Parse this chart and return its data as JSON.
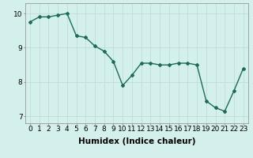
{
  "x": [
    0,
    1,
    2,
    3,
    4,
    5,
    6,
    7,
    8,
    9,
    10,
    11,
    12,
    13,
    14,
    15,
    16,
    17,
    18,
    19,
    20,
    21,
    22,
    23
  ],
  "y": [
    9.75,
    9.9,
    9.9,
    9.95,
    10.0,
    9.35,
    9.3,
    9.05,
    8.9,
    8.6,
    7.9,
    8.2,
    8.55,
    8.55,
    8.5,
    8.5,
    8.55,
    8.55,
    8.5,
    7.45,
    7.25,
    7.15,
    7.75,
    8.4
  ],
  "line_color": "#1a6b5a",
  "marker": "D",
  "marker_size": 2.0,
  "line_width": 1.0,
  "background_color": "#d4f0ec",
  "grid_color": "#c0dcd8",
  "xlabel": "Humidex (Indice chaleur)",
  "xlabel_fontsize": 7.5,
  "ylabel": "",
  "ylim": [
    6.8,
    10.3
  ],
  "xlim": [
    -0.5,
    23.5
  ],
  "yticks": [
    7,
    8,
    9,
    10
  ],
  "xticks": [
    0,
    1,
    2,
    3,
    4,
    5,
    6,
    7,
    8,
    9,
    10,
    11,
    12,
    13,
    14,
    15,
    16,
    17,
    18,
    19,
    20,
    21,
    22,
    23
  ],
  "tick_fontsize": 6.5
}
